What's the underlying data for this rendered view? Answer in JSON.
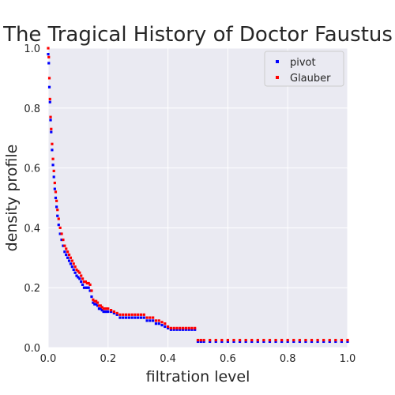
{
  "chart_data": {
    "type": "scatter",
    "title": "The Tragical History of Doctor Faustus",
    "xlabel": "filtration level",
    "ylabel": "density profile",
    "xlim": [
      0.0,
      1.0
    ],
    "ylim": [
      0.0,
      1.0
    ],
    "xticks": [
      "0.0",
      "0.2",
      "0.4",
      "0.6",
      "0.8",
      "1.0"
    ],
    "yticks": [
      "0.0",
      "0.2",
      "0.4",
      "0.6",
      "0.8",
      "1.0"
    ],
    "grid": true,
    "legend_position": "top-right",
    "series": [
      {
        "name": "pivot",
        "color": "#0000ff",
        "x": [
          0.0,
          0.002,
          0.004,
          0.006,
          0.008,
          0.01,
          0.013,
          0.016,
          0.019,
          0.022,
          0.025,
          0.028,
          0.031,
          0.035,
          0.04,
          0.045,
          0.05,
          0.055,
          0.06,
          0.065,
          0.07,
          0.075,
          0.08,
          0.085,
          0.09,
          0.095,
          0.1,
          0.105,
          0.11,
          0.115,
          0.12,
          0.125,
          0.13,
          0.135,
          0.14,
          0.145,
          0.15,
          0.155,
          0.16,
          0.165,
          0.17,
          0.175,
          0.18,
          0.185,
          0.19,
          0.195,
          0.2,
          0.21,
          0.22,
          0.23,
          0.24,
          0.25,
          0.26,
          0.27,
          0.28,
          0.29,
          0.3,
          0.31,
          0.32,
          0.33,
          0.34,
          0.35,
          0.36,
          0.37,
          0.38,
          0.39,
          0.4,
          0.41,
          0.42,
          0.43,
          0.44,
          0.45,
          0.46,
          0.47,
          0.48,
          0.49,
          0.5,
          0.51,
          0.52,
          0.54,
          0.56,
          0.58,
          0.6,
          0.62,
          0.64,
          0.66,
          0.68,
          0.7,
          0.72,
          0.74,
          0.76,
          0.78,
          0.8,
          0.82,
          0.84,
          0.86,
          0.88,
          0.9,
          0.92,
          0.94,
          0.96,
          0.98,
          1.0
        ],
        "y": [
          0.98,
          0.95,
          0.87,
          0.82,
          0.76,
          0.72,
          0.66,
          0.61,
          0.57,
          0.53,
          0.5,
          0.47,
          0.44,
          0.41,
          0.38,
          0.36,
          0.34,
          0.32,
          0.31,
          0.3,
          0.29,
          0.28,
          0.27,
          0.26,
          0.25,
          0.24,
          0.235,
          0.23,
          0.22,
          0.21,
          0.2,
          0.2,
          0.2,
          0.2,
          0.19,
          0.17,
          0.15,
          0.145,
          0.145,
          0.14,
          0.13,
          0.13,
          0.125,
          0.12,
          0.12,
          0.12,
          0.12,
          0.12,
          0.115,
          0.11,
          0.1,
          0.1,
          0.1,
          0.1,
          0.1,
          0.1,
          0.1,
          0.1,
          0.1,
          0.09,
          0.09,
          0.09,
          0.08,
          0.08,
          0.075,
          0.07,
          0.065,
          0.06,
          0.06,
          0.06,
          0.06,
          0.06,
          0.06,
          0.06,
          0.06,
          0.06,
          0.02,
          0.02,
          0.02,
          0.02,
          0.02,
          0.02,
          0.02,
          0.02,
          0.02,
          0.02,
          0.02,
          0.02,
          0.02,
          0.02,
          0.02,
          0.02,
          0.02,
          0.02,
          0.02,
          0.02,
          0.02,
          0.02,
          0.02,
          0.02,
          0.02,
          0.02,
          0.02
        ]
      },
      {
        "name": "Glauber",
        "color": "#ff0000",
        "x": [
          0.0,
          0.002,
          0.004,
          0.006,
          0.008,
          0.01,
          0.013,
          0.016,
          0.019,
          0.022,
          0.025,
          0.028,
          0.031,
          0.035,
          0.04,
          0.045,
          0.05,
          0.055,
          0.06,
          0.065,
          0.07,
          0.075,
          0.08,
          0.085,
          0.09,
          0.095,
          0.1,
          0.105,
          0.11,
          0.115,
          0.12,
          0.125,
          0.13,
          0.135,
          0.14,
          0.145,
          0.15,
          0.155,
          0.16,
          0.165,
          0.17,
          0.175,
          0.18,
          0.185,
          0.19,
          0.195,
          0.2,
          0.21,
          0.22,
          0.23,
          0.24,
          0.25,
          0.26,
          0.27,
          0.28,
          0.29,
          0.3,
          0.31,
          0.32,
          0.33,
          0.34,
          0.35,
          0.36,
          0.37,
          0.38,
          0.39,
          0.4,
          0.41,
          0.42,
          0.43,
          0.44,
          0.45,
          0.46,
          0.47,
          0.48,
          0.49,
          0.5,
          0.51,
          0.52,
          0.54,
          0.56,
          0.58,
          0.6,
          0.62,
          0.64,
          0.66,
          0.68,
          0.7,
          0.72,
          0.74,
          0.76,
          0.78,
          0.8,
          0.82,
          0.84,
          0.86,
          0.88,
          0.9,
          0.92,
          0.94,
          0.96,
          0.98,
          1.0
        ],
        "y": [
          1.0,
          0.97,
          0.9,
          0.83,
          0.77,
          0.73,
          0.68,
          0.63,
          0.59,
          0.55,
          0.52,
          0.49,
          0.46,
          0.43,
          0.4,
          0.38,
          0.36,
          0.34,
          0.33,
          0.32,
          0.31,
          0.3,
          0.29,
          0.28,
          0.27,
          0.26,
          0.255,
          0.25,
          0.24,
          0.23,
          0.22,
          0.22,
          0.215,
          0.215,
          0.21,
          0.19,
          0.16,
          0.155,
          0.155,
          0.15,
          0.14,
          0.14,
          0.135,
          0.13,
          0.13,
          0.13,
          0.13,
          0.125,
          0.12,
          0.115,
          0.11,
          0.11,
          0.11,
          0.11,
          0.11,
          0.11,
          0.11,
          0.11,
          0.11,
          0.1,
          0.1,
          0.1,
          0.09,
          0.09,
          0.085,
          0.08,
          0.07,
          0.065,
          0.065,
          0.065,
          0.065,
          0.065,
          0.065,
          0.065,
          0.065,
          0.065,
          0.025,
          0.025,
          0.025,
          0.025,
          0.025,
          0.025,
          0.025,
          0.025,
          0.025,
          0.025,
          0.025,
          0.025,
          0.025,
          0.025,
          0.025,
          0.025,
          0.025,
          0.025,
          0.025,
          0.025,
          0.025,
          0.025,
          0.025,
          0.025,
          0.025,
          0.025,
          0.025
        ]
      }
    ]
  }
}
